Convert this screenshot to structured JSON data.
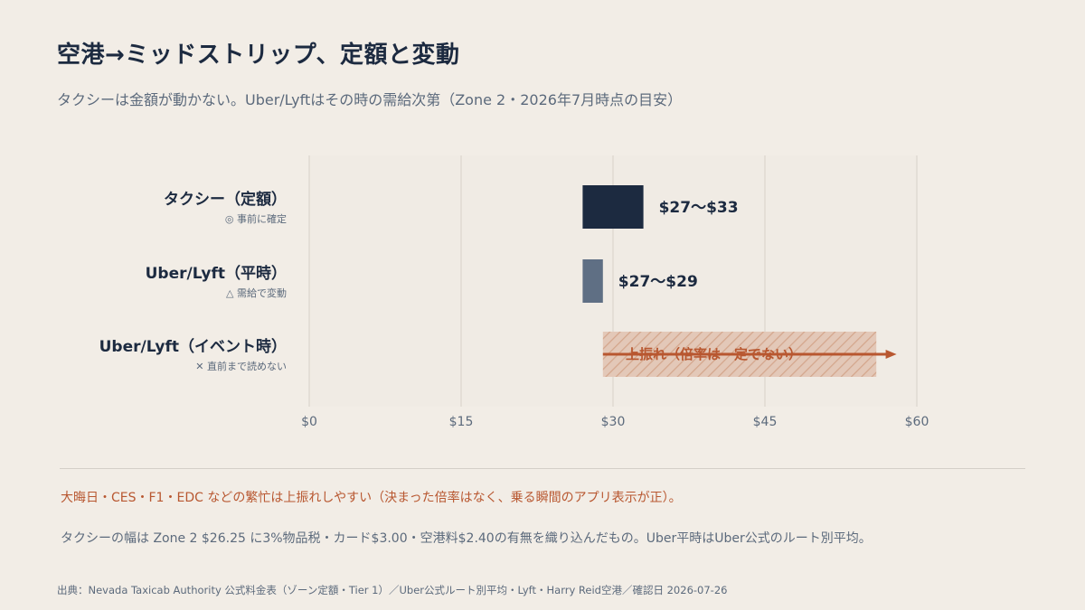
{
  "title": "空港→ミッドストリップ、定額と変動",
  "subtitle": "タクシーは金額が動かない。Uber/Lyftはその時の需給次第（Zone 2・2026年7月時点の目安）",
  "colors": {
    "background": "#f2ede6",
    "taxi": "#1c2a40",
    "uber_normal": "#5f6f84",
    "uber_event": "#b85730",
    "text_muted": "#5c6a7c"
  },
  "chart_data": {
    "type": "bar",
    "orientation": "horizontal",
    "xlim": [
      0,
      60
    ],
    "ticks": [
      0,
      15,
      30,
      45,
      60
    ],
    "tick_labels": [
      "$0",
      "$15",
      "$30",
      "$45",
      "$60"
    ],
    "grid": true,
    "rows": [
      {
        "label": "タクシー（定額）",
        "sublabel": "◎ 事前に確定",
        "min": 27,
        "max": 33,
        "value_label": "$27〜$33",
        "style": "solid"
      },
      {
        "label": "Uber/Lyft（平時）",
        "sublabel": "△ 需給で変動",
        "min": 27,
        "max": 29,
        "value_label": "$27〜$29",
        "style": "solid"
      },
      {
        "label": "Uber/Lyft（イベント時）",
        "sublabel": "✕ 直前まで読めない",
        "min": 29,
        "max": 56,
        "arrow_end": 58,
        "value_label": "上振れ（倍率は一定でない）",
        "style": "hatched-arrow"
      }
    ]
  },
  "note_event": "大晦日・CES・F1・EDC などの繁忙は上振れしやすい（決まった倍率はなく、乗る瞬間のアプリ表示が正）。",
  "note_taxi": "タクシーの幅は Zone 2 $26.25 に3%物品税・カード$3.00・空港料$2.40の有無を織り込んだもの。Uber平時はUber公式のルート別平均。",
  "source": "出典：Nevada Taxicab Authority 公式料金表（ゾーン定額・Tier 1）／Uber公式ルート別平均・Lyft・Harry Reid空港／確認日 2026-07-26"
}
